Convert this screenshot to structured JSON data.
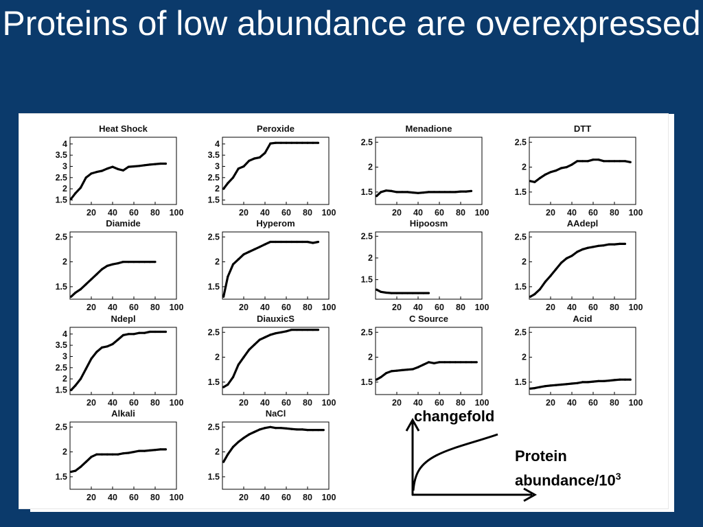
{
  "slide": {
    "title": "Proteins of low abundance are overexpressed"
  },
  "chart_data": [
    {
      "type": "scatter",
      "title": "Heat Shock",
      "ylim": [
        1.3,
        4.3
      ],
      "yticks": [
        "1.5",
        "2",
        "2.5",
        "3",
        "3.5",
        "4"
      ],
      "xlim": [
        0,
        100
      ],
      "xticks": [
        "20",
        "40",
        "60",
        "80",
        "100"
      ],
      "x": [
        1,
        5,
        10,
        15,
        20,
        25,
        30,
        35,
        40,
        45,
        50,
        55,
        60,
        65,
        70,
        75,
        80,
        85,
        90
      ],
      "y": [
        1.55,
        1.8,
        2.05,
        2.5,
        2.68,
        2.75,
        2.8,
        2.9,
        2.98,
        2.88,
        2.82,
        2.98,
        3.0,
        3.02,
        3.05,
        3.08,
        3.1,
        3.12,
        3.12
      ]
    },
    {
      "type": "scatter",
      "title": "Peroxide",
      "ylim": [
        1.3,
        4.3
      ],
      "yticks": [
        "1.5",
        "2",
        "2.5",
        "3",
        "3.5",
        "4"
      ],
      "xlim": [
        0,
        100
      ],
      "xticks": [
        "20",
        "40",
        "60",
        "80",
        "100"
      ],
      "x": [
        1,
        5,
        10,
        15,
        20,
        25,
        30,
        35,
        40,
        45,
        50,
        55,
        60,
        65,
        70,
        75,
        80,
        85,
        90
      ],
      "y": [
        2.0,
        2.25,
        2.5,
        2.9,
        3.0,
        3.25,
        3.35,
        3.4,
        3.6,
        4.02,
        4.05,
        4.05,
        4.05,
        4.05,
        4.05,
        4.05,
        4.05,
        4.05,
        4.05
      ]
    },
    {
      "type": "scatter",
      "title": "Menadione",
      "ylim": [
        1.25,
        2.6
      ],
      "yticks": [
        "1.5",
        "2",
        "2.5"
      ],
      "xlim": [
        0,
        100
      ],
      "xticks": [
        "20",
        "40",
        "60",
        "80",
        "100"
      ],
      "x": [
        1,
        5,
        10,
        15,
        20,
        25,
        30,
        35,
        40,
        45,
        50,
        55,
        60,
        65,
        70,
        75,
        80,
        85,
        90
      ],
      "y": [
        1.42,
        1.5,
        1.53,
        1.52,
        1.5,
        1.5,
        1.5,
        1.49,
        1.48,
        1.49,
        1.5,
        1.5,
        1.5,
        1.5,
        1.5,
        1.5,
        1.51,
        1.51,
        1.52
      ]
    },
    {
      "type": "scatter",
      "title": "DTT",
      "ylim": [
        1.25,
        2.6
      ],
      "yticks": [
        "1.5",
        "2",
        "2.5"
      ],
      "xlim": [
        0,
        100
      ],
      "xticks": [
        "20",
        "40",
        "60",
        "80",
        "100"
      ],
      "x": [
        1,
        5,
        10,
        15,
        20,
        25,
        30,
        35,
        40,
        45,
        50,
        55,
        60,
        65,
        70,
        75,
        80,
        85,
        90,
        95
      ],
      "y": [
        1.72,
        1.7,
        1.78,
        1.85,
        1.9,
        1.93,
        1.98,
        2.0,
        2.05,
        2.12,
        2.12,
        2.12,
        2.15,
        2.15,
        2.12,
        2.12,
        2.12,
        2.12,
        2.12,
        2.1
      ]
    },
    {
      "type": "scatter",
      "title": "Diamide",
      "ylim": [
        1.25,
        2.6
      ],
      "yticks": [
        "1.5",
        "2",
        "2.5"
      ],
      "xlim": [
        0,
        100
      ],
      "xticks": [
        "20",
        "40",
        "60",
        "80",
        "100"
      ],
      "x": [
        1,
        5,
        10,
        15,
        20,
        25,
        30,
        35,
        40,
        45,
        50,
        55,
        60,
        65,
        70,
        75,
        80
      ],
      "y": [
        1.3,
        1.38,
        1.45,
        1.55,
        1.65,
        1.75,
        1.85,
        1.92,
        1.95,
        1.97,
        2.0,
        2.0,
        2.0,
        2.0,
        2.0,
        2.0,
        2.0
      ]
    },
    {
      "type": "scatter",
      "title": "Hyperom",
      "ylim": [
        1.25,
        2.6
      ],
      "yticks": [
        "1.5",
        "2",
        "2.5"
      ],
      "xlim": [
        0,
        100
      ],
      "xticks": [
        "20",
        "40",
        "60",
        "80",
        "100"
      ],
      "x": [
        1,
        5,
        10,
        15,
        20,
        25,
        30,
        35,
        40,
        45,
        50,
        55,
        60,
        65,
        70,
        75,
        80,
        85,
        90
      ],
      "y": [
        1.3,
        1.7,
        1.95,
        2.05,
        2.15,
        2.2,
        2.25,
        2.3,
        2.35,
        2.4,
        2.4,
        2.4,
        2.4,
        2.4,
        2.4,
        2.4,
        2.4,
        2.38,
        2.4
      ]
    },
    {
      "type": "scatter",
      "title": "Hipoosm",
      "ylim": [
        1.05,
        2.6
      ],
      "yticks": [
        "1.5",
        "2",
        "2.5"
      ],
      "xlim": [
        0,
        100
      ],
      "xticks": [
        "20",
        "40",
        "60",
        "80",
        "100"
      ],
      "x": [
        1,
        5,
        10,
        15,
        20,
        25,
        30,
        35,
        40,
        45,
        50
      ],
      "y": [
        1.27,
        1.22,
        1.2,
        1.19,
        1.19,
        1.19,
        1.19,
        1.19,
        1.19,
        1.19,
        1.19
      ]
    },
    {
      "type": "scatter",
      "title": "AAdepl",
      "ylim": [
        1.25,
        2.6
      ],
      "yticks": [
        "1.5",
        "2",
        "2.5"
      ],
      "xlim": [
        0,
        100
      ],
      "xticks": [
        "20",
        "40",
        "60",
        "80",
        "100"
      ],
      "x": [
        1,
        5,
        10,
        15,
        20,
        25,
        30,
        35,
        40,
        45,
        50,
        55,
        60,
        65,
        70,
        75,
        80,
        85,
        90
      ],
      "y": [
        1.3,
        1.35,
        1.45,
        1.6,
        1.72,
        1.85,
        1.98,
        2.07,
        2.12,
        2.2,
        2.25,
        2.28,
        2.3,
        2.32,
        2.33,
        2.35,
        2.35,
        2.36,
        2.36
      ]
    },
    {
      "type": "scatter",
      "title": "Ndepl",
      "ylim": [
        1.3,
        4.3
      ],
      "yticks": [
        "1.5",
        "2",
        "2.5",
        "3",
        "3.5",
        "4"
      ],
      "xlim": [
        0,
        100
      ],
      "xticks": [
        "20",
        "40",
        "60",
        "80",
        "100"
      ],
      "x": [
        1,
        5,
        10,
        15,
        20,
        25,
        30,
        35,
        40,
        45,
        50,
        55,
        60,
        65,
        70,
        75,
        80,
        85,
        90
      ],
      "y": [
        1.5,
        1.7,
        2.0,
        2.45,
        2.9,
        3.2,
        3.4,
        3.45,
        3.55,
        3.75,
        3.95,
        4.0,
        4.0,
        4.05,
        4.05,
        4.1,
        4.1,
        4.1,
        4.1
      ]
    },
    {
      "type": "scatter",
      "title": "DiauxicS",
      "ylim": [
        1.25,
        2.6
      ],
      "yticks": [
        "1.5",
        "2",
        "2.5"
      ],
      "xlim": [
        0,
        100
      ],
      "xticks": [
        "20",
        "40",
        "60",
        "80",
        "100"
      ],
      "x": [
        1,
        5,
        10,
        15,
        20,
        25,
        30,
        35,
        40,
        45,
        50,
        55,
        60,
        65,
        70,
        75,
        80,
        85,
        90
      ],
      "y": [
        1.4,
        1.45,
        1.6,
        1.85,
        2.0,
        2.15,
        2.25,
        2.35,
        2.4,
        2.45,
        2.48,
        2.5,
        2.52,
        2.55,
        2.55,
        2.55,
        2.55,
        2.55,
        2.55
      ]
    },
    {
      "type": "scatter",
      "title": "C Source",
      "ylim": [
        1.25,
        2.6
      ],
      "yticks": [
        "1.5",
        "2",
        "2.5"
      ],
      "xlim": [
        0,
        100
      ],
      "xticks": [
        "20",
        "40",
        "60",
        "80",
        "100"
      ],
      "x": [
        1,
        5,
        10,
        15,
        20,
        25,
        30,
        35,
        40,
        45,
        50,
        55,
        60,
        65,
        70,
        75,
        80,
        85,
        90,
        95
      ],
      "y": [
        1.55,
        1.6,
        1.68,
        1.72,
        1.73,
        1.74,
        1.75,
        1.76,
        1.8,
        1.85,
        1.9,
        1.88,
        1.9,
        1.9,
        1.9,
        1.9,
        1.9,
        1.9,
        1.9,
        1.9
      ]
    },
    {
      "type": "scatter",
      "title": "Acid",
      "ylim": [
        1.25,
        2.6
      ],
      "yticks": [
        "1.5",
        "2",
        "2.5"
      ],
      "xlim": [
        0,
        100
      ],
      "xticks": [
        "20",
        "40",
        "60",
        "80",
        "100"
      ],
      "x": [
        1,
        5,
        10,
        15,
        20,
        25,
        30,
        35,
        40,
        45,
        50,
        55,
        60,
        65,
        70,
        75,
        80,
        85,
        90,
        95
      ],
      "y": [
        1.37,
        1.38,
        1.4,
        1.42,
        1.43,
        1.44,
        1.45,
        1.46,
        1.47,
        1.48,
        1.5,
        1.5,
        1.51,
        1.52,
        1.52,
        1.53,
        1.54,
        1.55,
        1.55,
        1.55
      ]
    },
    {
      "type": "scatter",
      "title": "Alkali",
      "ylim": [
        1.25,
        2.6
      ],
      "yticks": [
        "1.5",
        "2",
        "2.5"
      ],
      "xlim": [
        0,
        100
      ],
      "xticks": [
        "20",
        "40",
        "60",
        "80",
        "100"
      ],
      "x": [
        1,
        5,
        10,
        15,
        20,
        25,
        30,
        35,
        40,
        45,
        50,
        55,
        60,
        65,
        70,
        75,
        80,
        85,
        90
      ],
      "y": [
        1.6,
        1.62,
        1.7,
        1.8,
        1.9,
        1.95,
        1.95,
        1.95,
        1.95,
        1.95,
        1.97,
        1.98,
        2.0,
        2.02,
        2.02,
        2.03,
        2.04,
        2.05,
        2.05
      ]
    },
    {
      "type": "scatter",
      "title": "NaCl",
      "ylim": [
        1.25,
        2.6
      ],
      "yticks": [
        "1.5",
        "2",
        "2.5"
      ],
      "xlim": [
        0,
        100
      ],
      "xticks": [
        "20",
        "40",
        "60",
        "80",
        "100"
      ],
      "x": [
        1,
        5,
        10,
        15,
        20,
        25,
        30,
        35,
        40,
        45,
        50,
        55,
        60,
        65,
        70,
        75,
        80,
        85,
        90,
        95
      ],
      "y": [
        1.8,
        1.95,
        2.1,
        2.2,
        2.28,
        2.35,
        2.4,
        2.45,
        2.48,
        2.5,
        2.48,
        2.48,
        2.47,
        2.46,
        2.45,
        2.45,
        2.44,
        2.44,
        2.44,
        2.44
      ]
    }
  ],
  "inset": {
    "y_label": "changefold",
    "x_label_line1": "Protein",
    "x_label_line2": "abundance/10",
    "x_label_exp": "3"
  }
}
